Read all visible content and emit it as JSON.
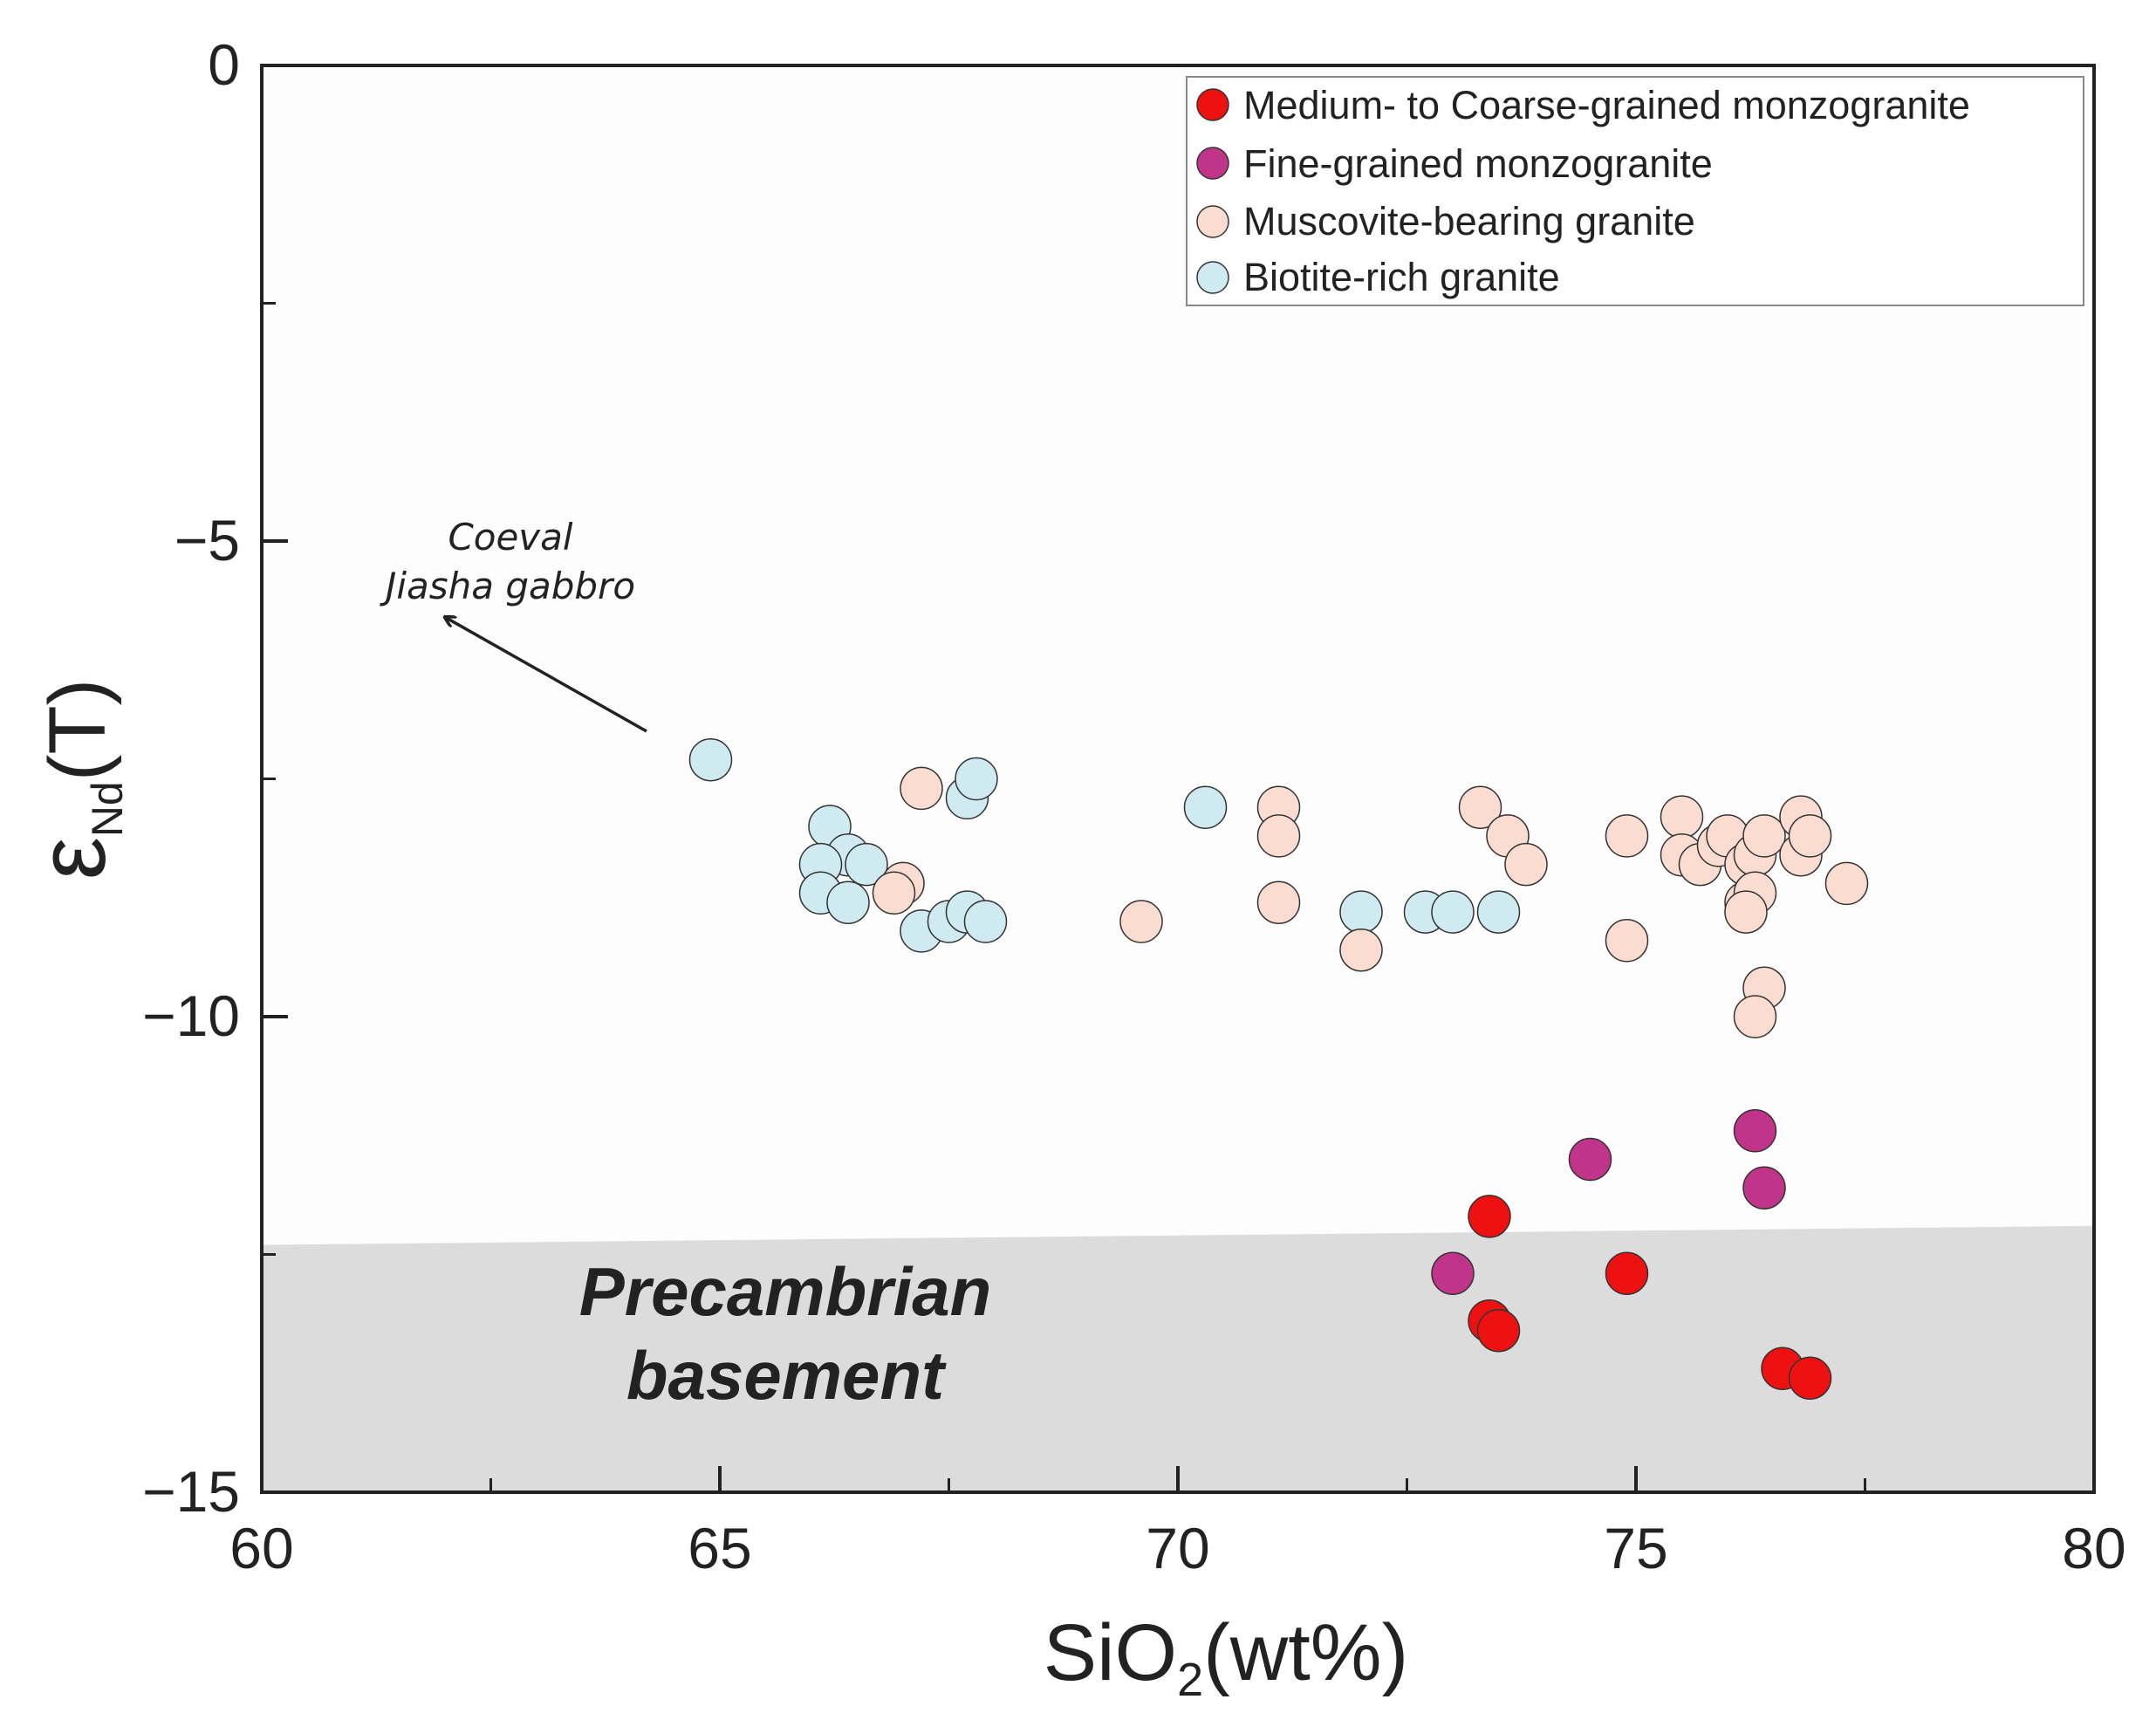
{
  "chart_data": {
    "type": "scatter",
    "xlabel": "SiO",
    "xlabel_sub": "2",
    "xlabel_suffix": "(wt%)",
    "ylabel": "ε",
    "ylabel_sub": "Nd",
    "ylabel_suffix": "(T)",
    "xlim": [
      60,
      80
    ],
    "ylim": [
      -15,
      0
    ],
    "x_ticks": [
      {
        "value": 60,
        "label": "60"
      },
      {
        "value": 65,
        "label": "65"
      },
      {
        "value": 70,
        "label": "70"
      },
      {
        "value": 75,
        "label": "75"
      },
      {
        "value": 80,
        "label": "80"
      }
    ],
    "y_ticks": [
      {
        "value": 0,
        "label": "0"
      },
      {
        "value": -5,
        "label": "−5"
      },
      {
        "value": -10,
        "label": "−10"
      },
      {
        "value": -15,
        "label": "−15"
      }
    ],
    "x_minor_ticks": [
      62.5,
      67.5,
      72.5,
      77.5
    ],
    "y_minor_ticks": [
      -2.5,
      -7.5,
      -12.5
    ],
    "legend_position": "top-right",
    "series": [
      {
        "name": "Medium- to Coarse-grained monzogranite",
        "color": "#ee1111",
        "points": [
          [
            73.4,
            -12.1
          ],
          [
            74.9,
            -12.7
          ],
          [
            73.4,
            -13.2
          ],
          [
            73.5,
            -13.3
          ],
          [
            76.6,
            -13.7
          ],
          [
            76.9,
            -13.8
          ]
        ]
      },
      {
        "name": "Fine-grained monzogranite",
        "color": "#c0358a",
        "points": [
          [
            74.5,
            -11.5
          ],
          [
            76.3,
            -11.2
          ],
          [
            76.4,
            -11.8
          ],
          [
            73.0,
            -12.7
          ]
        ]
      },
      {
        "name": "Muscovite-bearing granite",
        "color": "#fbdcd0",
        "points": [
          [
            67.2,
            -7.6
          ],
          [
            67.0,
            -8.6
          ],
          [
            66.9,
            -8.7
          ],
          [
            69.6,
            -9.0
          ],
          [
            71.1,
            -7.8
          ],
          [
            71.1,
            -8.1
          ],
          [
            71.1,
            -8.8
          ],
          [
            72.0,
            -9.3
          ],
          [
            73.3,
            -7.8
          ],
          [
            73.6,
            -8.1
          ],
          [
            73.8,
            -8.4
          ],
          [
            74.9,
            -8.1
          ],
          [
            74.9,
            -9.2
          ],
          [
            75.5,
            -7.9
          ],
          [
            75.5,
            -8.3
          ],
          [
            75.7,
            -8.4
          ],
          [
            75.9,
            -8.2
          ],
          [
            76.0,
            -8.1
          ],
          [
            76.2,
            -8.4
          ],
          [
            76.3,
            -8.3
          ],
          [
            76.2,
            -8.8
          ],
          [
            76.3,
            -8.7
          ],
          [
            76.2,
            -8.9
          ],
          [
            76.4,
            -8.1
          ],
          [
            76.4,
            -9.7
          ],
          [
            76.3,
            -10.0
          ],
          [
            76.8,
            -8.3
          ],
          [
            76.8,
            -7.9
          ],
          [
            76.9,
            -8.1
          ],
          [
            77.3,
            -8.6
          ]
        ]
      },
      {
        "name": "Biotite-rich granite",
        "color": "#cfeaf0",
        "points": [
          [
            64.9,
            -7.3
          ],
          [
            66.2,
            -8.0
          ],
          [
            66.4,
            -8.3
          ],
          [
            66.6,
            -8.4
          ],
          [
            66.1,
            -8.4
          ],
          [
            66.1,
            -8.7
          ],
          [
            66.4,
            -8.8
          ],
          [
            67.2,
            -9.1
          ],
          [
            67.5,
            -9.0
          ],
          [
            67.7,
            -8.9
          ],
          [
            67.9,
            -9.0
          ],
          [
            67.7,
            -7.7
          ],
          [
            67.8,
            -7.5
          ],
          [
            70.3,
            -7.8
          ],
          [
            72.0,
            -8.9
          ],
          [
            72.7,
            -8.9
          ],
          [
            73.0,
            -8.9
          ],
          [
            73.5,
            -8.9
          ]
        ]
      }
    ],
    "annotation": {
      "lines": [
        "Coeval",
        "Jiasha gabbro"
      ],
      "arrow_from": [
        64.2,
        -7.0
      ],
      "arrow_to": [
        62.0,
        -5.8
      ]
    },
    "region": {
      "lines": [
        "Precambrian",
        "basement"
      ],
      "color": "#dcdcdc",
      "boundary": [
        [
          60,
          -12.4
        ],
        [
          80,
          -12.2
        ]
      ]
    }
  }
}
